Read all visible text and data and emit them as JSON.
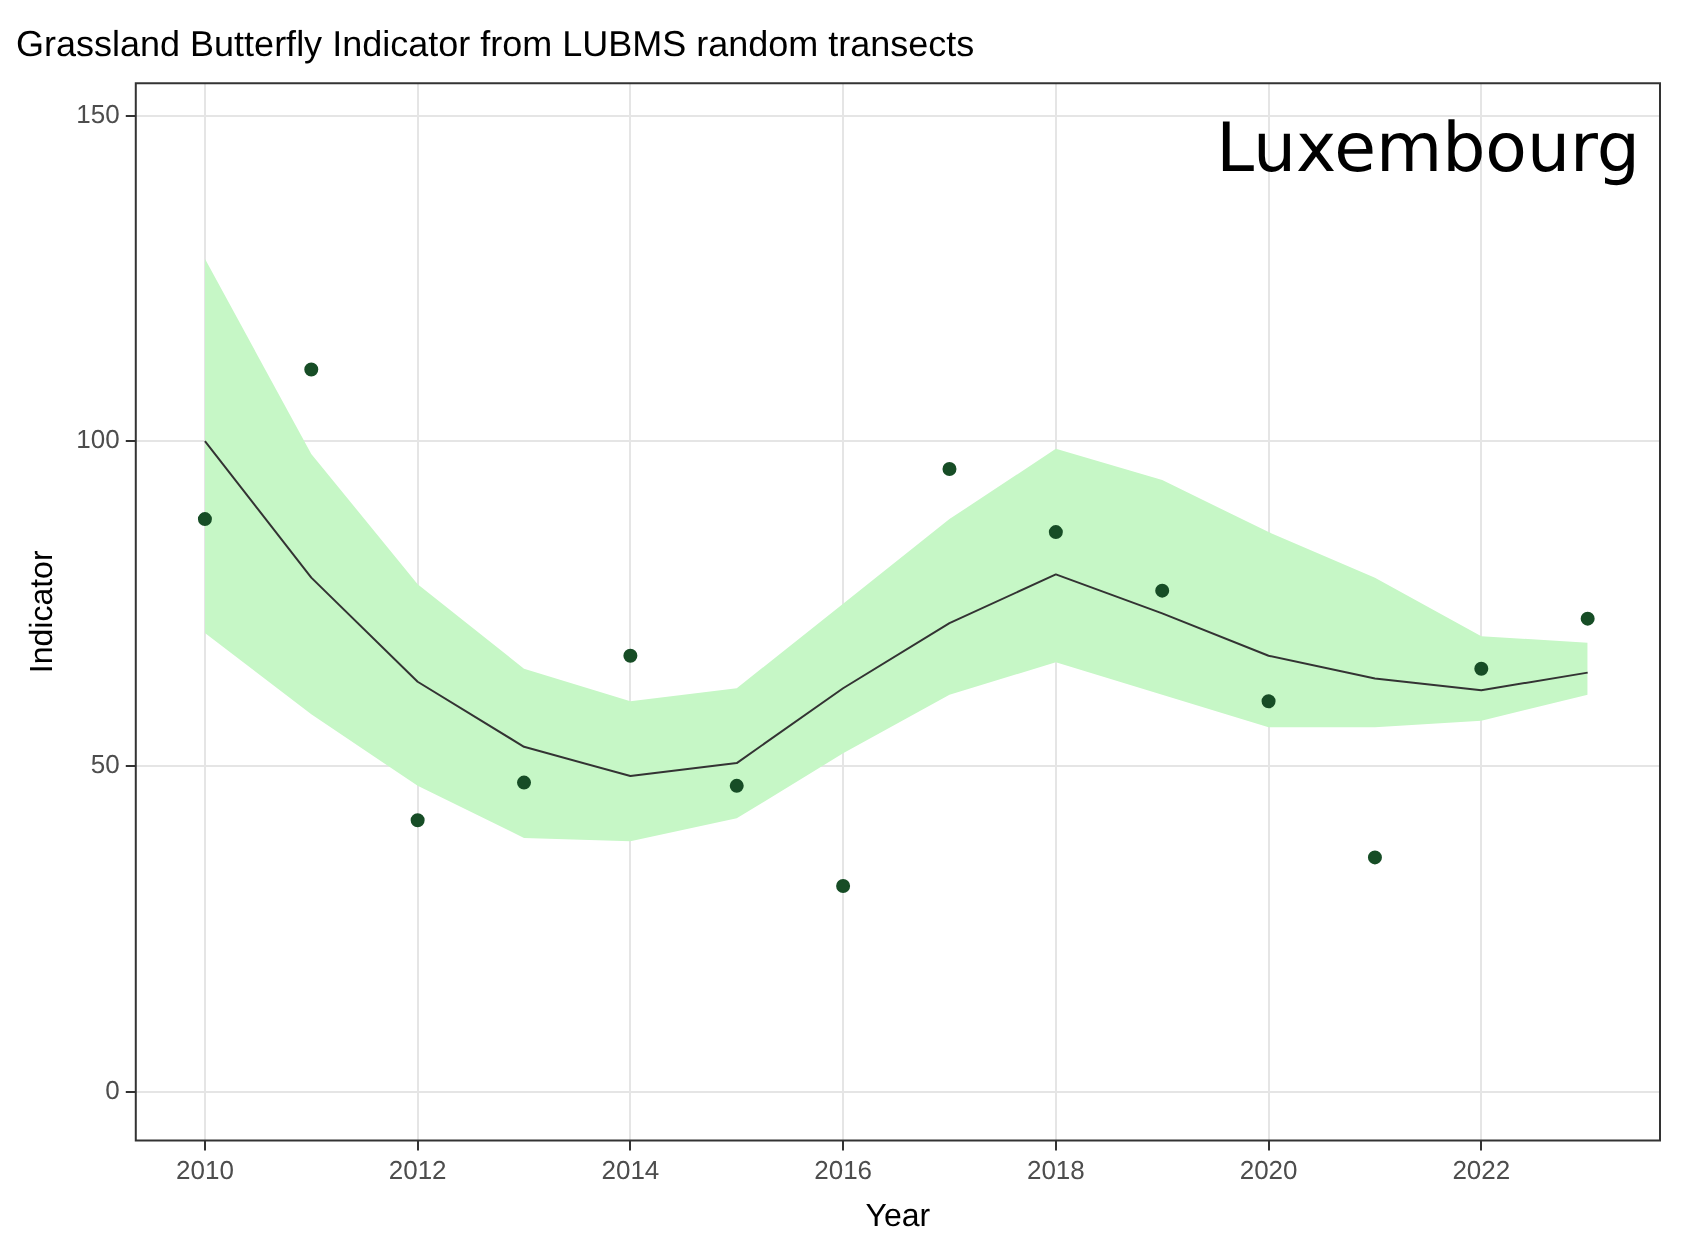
{
  "chart_data": {
    "type": "line",
    "title": "Grassland Butterfly Indicator from LUBMS random transects",
    "xlabel": "Year",
    "ylabel": "Indicator",
    "x": [
      2010,
      2011,
      2012,
      2013,
      2014,
      2015,
      2016,
      2017,
      2018,
      2019,
      2020,
      2021,
      2022,
      2023
    ],
    "series": [
      {
        "color": "#333333",
        "values": [
          100,
          79,
          63,
          53,
          48.5,
          50.5,
          62,
          72,
          79.5,
          73.5,
          67,
          63.5,
          61.7,
          64.4
        ],
        "lower": [
          70.5,
          58,
          47,
          39,
          38.5,
          42,
          52,
          61,
          66,
          61,
          56,
          56,
          57,
          61
        ],
        "upper": [
          128,
          98,
          78,
          65,
          60,
          62,
          75,
          88,
          98.8,
          94,
          86,
          79,
          70,
          69
        ]
      },
      {
        "type": "scatter",
        "color": "#174d26",
        "marker": "circle",
        "values": [
          88,
          111,
          41.7,
          47.5,
          67,
          47,
          31.6,
          95.7,
          86,
          77,
          60,
          36,
          65,
          72.7
        ]
      }
    ],
    "xlim": [
      2009.35,
      2023.68
    ],
    "xticks": [
      2010,
      2012,
      2014,
      2016,
      2018,
      2020,
      2022
    ],
    "ylim": [
      -7.5,
      155
    ],
    "yticks": [
      0,
      50,
      100,
      150
    ],
    "grid": true,
    "line_style": "solid",
    "annotations": [
      "Luxembourg"
    ]
  }
}
